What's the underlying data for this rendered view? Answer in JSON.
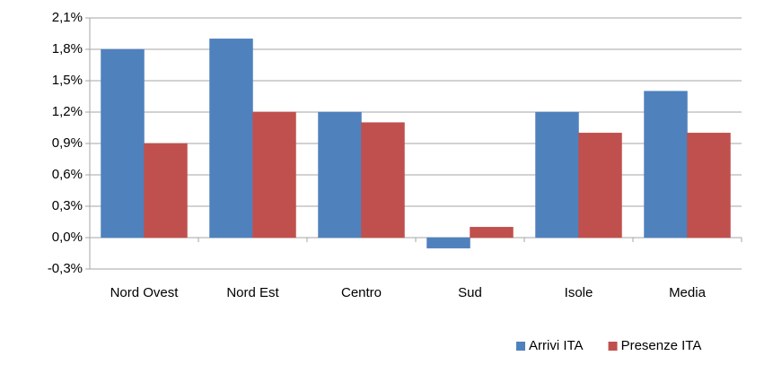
{
  "chart_data": {
    "type": "bar",
    "categories": [
      "Nord Ovest",
      "Nord Est",
      "Centro",
      "Sud",
      "Isole",
      "Media"
    ],
    "series": [
      {
        "name": "Arrivi ITA",
        "color": "#4f81bd",
        "values": [
          1.8,
          1.9,
          1.2,
          -0.1,
          1.2,
          1.4
        ]
      },
      {
        "name": "Presenze ITA",
        "color": "#c0504d",
        "values": [
          0.9,
          1.2,
          1.1,
          0.1,
          1.0,
          1.0
        ]
      }
    ],
    "ylim": [
      -0.3,
      2.1
    ],
    "yticks": [
      {
        "value": -0.3,
        "label": "-0,3%"
      },
      {
        "value": 0,
        "label": "0,0%"
      },
      {
        "value": 0.3,
        "label": "0,3%"
      },
      {
        "value": 0.6,
        "label": "0,6%"
      },
      {
        "value": 0.9,
        "label": "0,9%"
      },
      {
        "value": 1.2,
        "label": "1,2%"
      },
      {
        "value": 1.5,
        "label": "1,5%"
      },
      {
        "value": 1.8,
        "label": "1,8%"
      },
      {
        "value": 2.1,
        "label": "2,1%"
      }
    ],
    "grid": true,
    "legend": "bottom-right"
  }
}
